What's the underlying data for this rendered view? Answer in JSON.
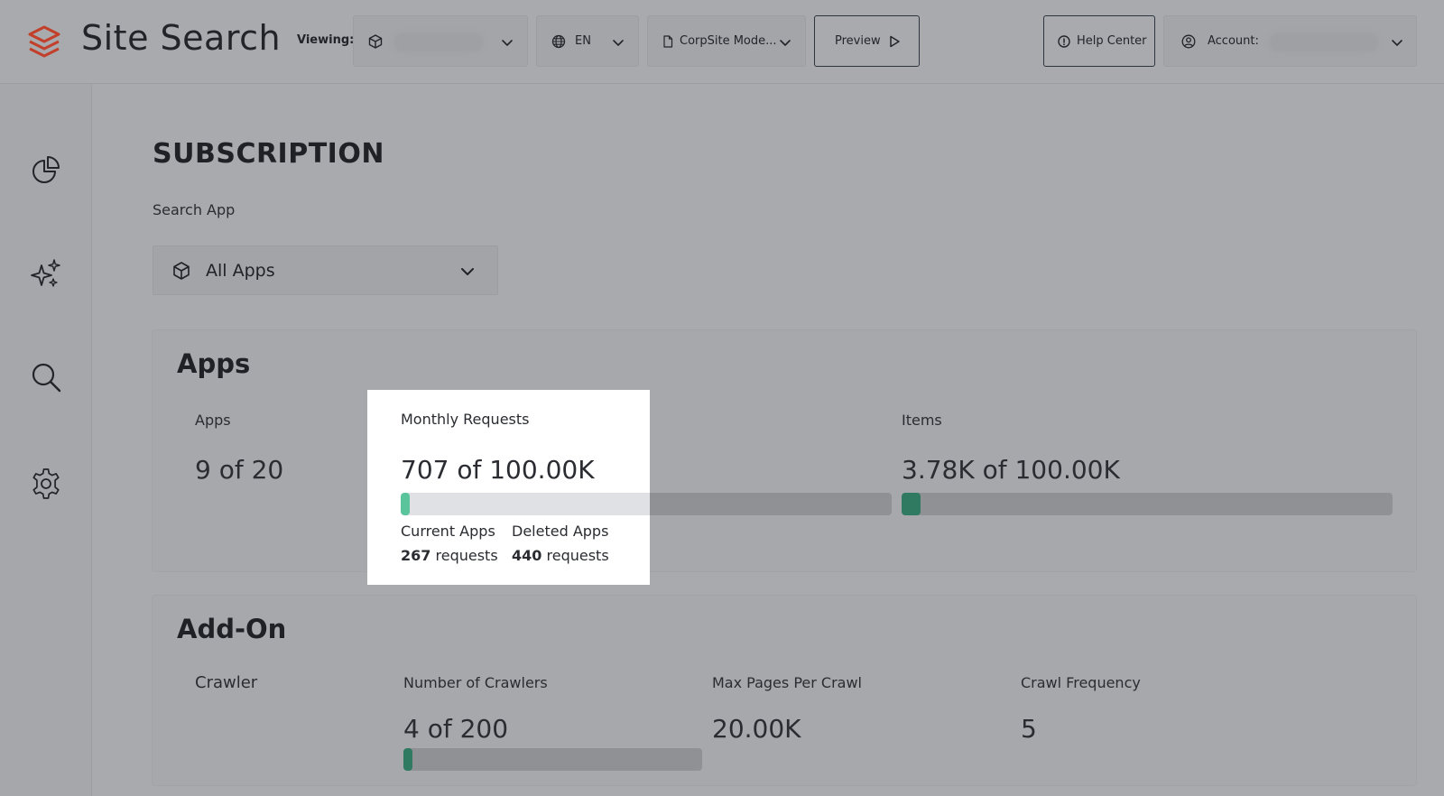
{
  "header": {
    "title": "Site Search",
    "viewing_label": "Viewing:",
    "language": "EN",
    "model_select": "CorpSite Mode...",
    "preview_label": "Preview",
    "help_label": "Help Center",
    "account_label": "Account:"
  },
  "sidebar": {
    "items": [
      {
        "icon": "analytics-pie-icon"
      },
      {
        "icon": "sparkles-icon"
      },
      {
        "icon": "search-icon"
      },
      {
        "icon": "gear-icon"
      }
    ]
  },
  "main": {
    "page_title": "SUBSCRIPTION",
    "search_app_label": "Search App",
    "search_app_value": "All Apps",
    "apps_card": {
      "title": "Apps",
      "apps_label": "Apps",
      "apps_value": "9 of 20",
      "monthly_requests_label": "Monthly Requests",
      "monthly_requests_value": "707 of 100.00K",
      "monthly_requests_fraction": 0.00707,
      "current_apps_label": "Current Apps",
      "current_apps_count": "267",
      "deleted_apps_label": "Deleted Apps",
      "deleted_apps_count": "440",
      "requests_unit": "requests",
      "items_label": "Items",
      "items_value": "3.78K of 100.00K",
      "items_fraction": 0.0378
    },
    "addon_card": {
      "title": "Add-On",
      "crawler_label": "Crawler",
      "crawlers_label": "Number of Crawlers",
      "crawlers_value": "4 of 200",
      "crawlers_fraction": 0.02,
      "max_pages_label": "Max Pages Per Crawl",
      "max_pages_value": "20.00K",
      "frequency_label": "Crawl Frequency",
      "frequency_value": "5"
    }
  },
  "colors": {
    "brand": "#c2402b",
    "bar_fill": "#2f7a61",
    "bar_fill_highlight": "#5ac59c"
  }
}
